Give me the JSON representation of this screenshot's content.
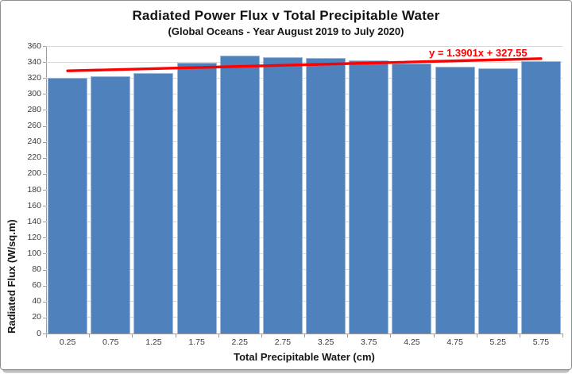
{
  "chart": {
    "title": "Radiated Power Flux v Total Precipitable Water",
    "subtitle": "(Global Oceans - Year August 2019 to July 2020)"
  },
  "chart_data": {
    "type": "bar",
    "title": "Radiated Power Flux v Total Precipitable Water",
    "subtitle": "(Global Oceans - Year August 2019 to July 2020)",
    "xlabel": "Total Precipitable Water (cm)",
    "ylabel": "Radiated Flux (W/sq.m)",
    "categories": [
      "0.25",
      "0.75",
      "1.25",
      "1.75",
      "2.25",
      "2.75",
      "3.25",
      "3.75",
      "4.25",
      "4.75",
      "5.25",
      "5.75"
    ],
    "values": [
      320,
      322.5,
      326,
      339,
      348,
      346.5,
      345,
      342.5,
      338,
      334,
      332.5,
      341.5
    ],
    "ylim": [
      0,
      360
    ],
    "yticks": [
      0,
      20,
      40,
      60,
      80,
      100,
      120,
      140,
      160,
      180,
      200,
      220,
      240,
      260,
      280,
      300,
      320,
      340,
      360
    ],
    "grid": true,
    "legend": "none",
    "bar_color": "#4f81bd",
    "bar_border_color": "#9fbcdf",
    "trendline": {
      "label": "y = 1.3901x + 327.55",
      "color": "#ff0000",
      "slope": 1.3901,
      "intercept": 327.55,
      "x_is_category_index": true,
      "start_value": 328.94,
      "end_value": 344.24
    }
  }
}
